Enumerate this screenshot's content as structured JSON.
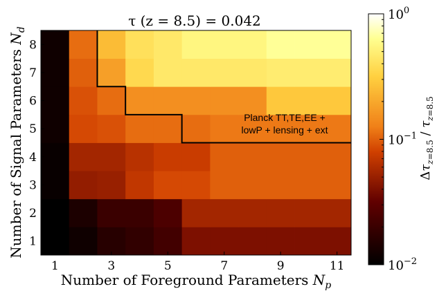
{
  "chart_data": {
    "type": "heatmap",
    "title": "τ (z = 8.5) = 0.042",
    "xlabel": "Number of Foreground Parameters N_p",
    "xlabel_main": "Number of Foreground Parameters ",
    "xlabel_var": "N",
    "xlabel_sub": "p",
    "ylabel": "Number of Signal Parameters N_d",
    "ylabel_main": "Number of Signal Parameters ",
    "ylabel_var": "N",
    "ylabel_sub": "d",
    "x": [
      1,
      2,
      3,
      4,
      5,
      6,
      7,
      8,
      9,
      10,
      11
    ],
    "y": [
      1,
      2,
      3,
      4,
      5,
      6,
      7,
      8
    ],
    "xticks": [
      "1",
      "3",
      "5",
      "7",
      "9",
      "11"
    ],
    "yticks": [
      "1",
      "2",
      "3",
      "4",
      "5",
      "6",
      "7",
      "8"
    ],
    "colorbar": {
      "label": "Δτ_{z=8.5} / τ_{z=8.5}",
      "scale": "log",
      "min": 0.01,
      "max": 1,
      "colormap": "afmhot",
      "ticks": [
        {
          "value": 1,
          "base": "10",
          "exp": "0"
        },
        {
          "value": 0.1,
          "base": "10",
          "exp": "−1"
        },
        {
          "value": 0.01,
          "base": "10",
          "exp": "−2"
        }
      ]
    },
    "values": [
      [
        0.01,
        0.012,
        0.016,
        0.018,
        0.022,
        0.04,
        0.04,
        0.04,
        0.04,
        0.04,
        0.04
      ],
      [
        0.01,
        0.014,
        0.02,
        0.02,
        0.025,
        0.055,
        0.055,
        0.055,
        0.055,
        0.055,
        0.055
      ],
      [
        0.011,
        0.048,
        0.05,
        0.07,
        0.085,
        0.085,
        0.1,
        0.1,
        0.1,
        0.1,
        0.1
      ],
      [
        0.011,
        0.055,
        0.055,
        0.065,
        0.075,
        0.075,
        0.1,
        0.1,
        0.1,
        0.1,
        0.1
      ],
      [
        0.012,
        0.085,
        0.09,
        0.11,
        0.11,
        0.11,
        0.12,
        0.12,
        0.12,
        0.12,
        0.12
      ],
      [
        0.012,
        0.09,
        0.11,
        0.15,
        0.15,
        0.15,
        0.15,
        0.15,
        0.29,
        0.29,
        0.29
      ],
      [
        0.012,
        0.1,
        0.18,
        0.36,
        0.45,
        0.45,
        0.45,
        0.45,
        0.48,
        0.48,
        0.48
      ],
      [
        0.012,
        0.11,
        0.25,
        0.4,
        0.45,
        0.55,
        0.55,
        0.55,
        0.65,
        0.65,
        0.65
      ]
    ],
    "boundary": [
      [
        2.5,
        8.5
      ],
      [
        2.5,
        6.5
      ],
      [
        3.5,
        6.5
      ],
      [
        3.5,
        5.5
      ],
      [
        5.5,
        5.5
      ],
      [
        5.5,
        4.5
      ],
      [
        11.5,
        4.5
      ]
    ],
    "annotation": [
      "Planck TT,TE,EE +",
      "lowP + lensing + ext"
    ],
    "xlim": [
      0.5,
      11.5
    ],
    "ylim": [
      0.5,
      8.5
    ]
  }
}
